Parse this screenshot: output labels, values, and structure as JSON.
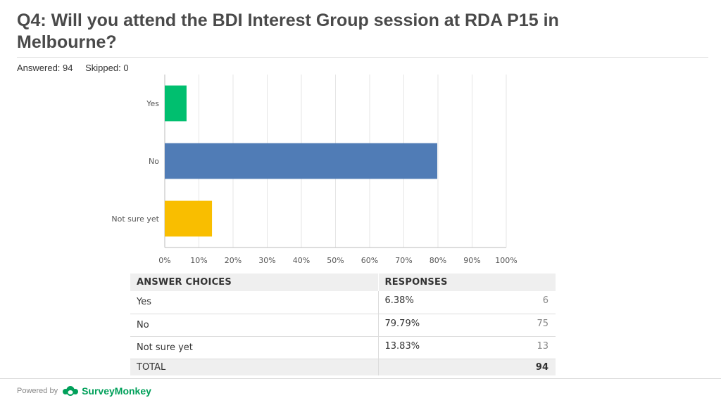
{
  "header": {
    "title": "Q4: Will you attend the BDI Interest Group session at RDA P15 in Melbourne?",
    "answered": "Answered: 94",
    "skipped": "Skipped: 0"
  },
  "chart_data": {
    "type": "bar",
    "orientation": "horizontal",
    "categories": [
      "Yes",
      "No",
      "Not sure yet"
    ],
    "values": [
      6.38,
      79.79,
      13.83
    ],
    "colors": [
      "#00bf6f",
      "#507cb6",
      "#f9be00"
    ],
    "xlim": [
      0,
      100
    ],
    "xticks": [
      "0%",
      "10%",
      "20%",
      "30%",
      "40%",
      "50%",
      "60%",
      "70%",
      "80%",
      "90%",
      "100%"
    ],
    "grid": true,
    "title": "",
    "xlabel": "",
    "ylabel": ""
  },
  "table": {
    "headers": [
      "ANSWER CHOICES",
      "RESPONSES"
    ],
    "rows": [
      {
        "choice": "Yes",
        "percent": "6.38%",
        "count": "6"
      },
      {
        "choice": "No",
        "percent": "79.79%",
        "count": "75"
      },
      {
        "choice": "Not sure yet",
        "percent": "13.83%",
        "count": "13"
      }
    ],
    "total_label": "TOTAL",
    "total_value": "94"
  },
  "footer": {
    "powered_by": "Powered by",
    "brand": "SurveyMonkey",
    "brand_color": "#00a05a"
  }
}
